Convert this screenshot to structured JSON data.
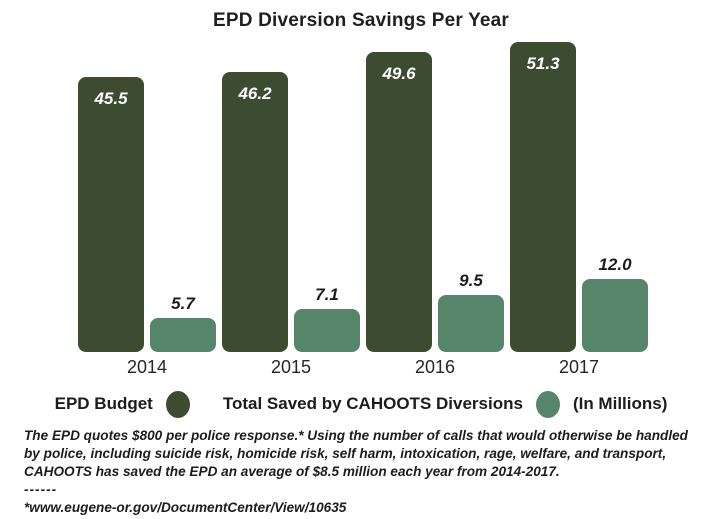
{
  "title": "EPD Diversion Savings Per Year",
  "chart_data": {
    "type": "bar",
    "title": "EPD Diversion Savings Per Year",
    "categories": [
      "2014",
      "2015",
      "2016",
      "2017"
    ],
    "series": [
      {
        "name": "EPD Budget",
        "color": "#3d4c31",
        "label_color": "#ffffff",
        "label_placement": "inside-top",
        "values": [
          45.5,
          46.2,
          49.6,
          51.3
        ]
      },
      {
        "name": "Total Saved by CAHOOTS Diversions",
        "color": "#578569",
        "label_color": "#1c1c1c",
        "label_placement": "above",
        "values": [
          5.7,
          7.1,
          9.5,
          12.0
        ]
      }
    ],
    "unit_label": "(In Millions)",
    "data_labels_shown": true,
    "axes_shown": false,
    "grid": false,
    "legend_position": "bottom"
  },
  "legend": {
    "items": [
      {
        "label": "EPD Budget",
        "color": "#3d4c31"
      },
      {
        "label": "Total Saved by CAHOOTS Diversions",
        "color": "#578569"
      }
    ],
    "suffix": "(In Millions)"
  },
  "footnote": {
    "body": "The EPD quotes $800 per police response.* Using the number of calls that would otherwise be handled by police, including suicide risk, homicide risk, self harm, intoxication, rage, welfare, and transport, CAHOOTS has saved the EPD an average of $8.5 million each year from 2014-2017.",
    "divider": "------",
    "source": "*www.eugene-or.gov/DocumentCenter/View/10635"
  },
  "colors": {
    "epd_budget": "#3d4c31",
    "cahoots_savings": "#578569",
    "text": "#1f1f1f",
    "background": "#ffffff"
  }
}
